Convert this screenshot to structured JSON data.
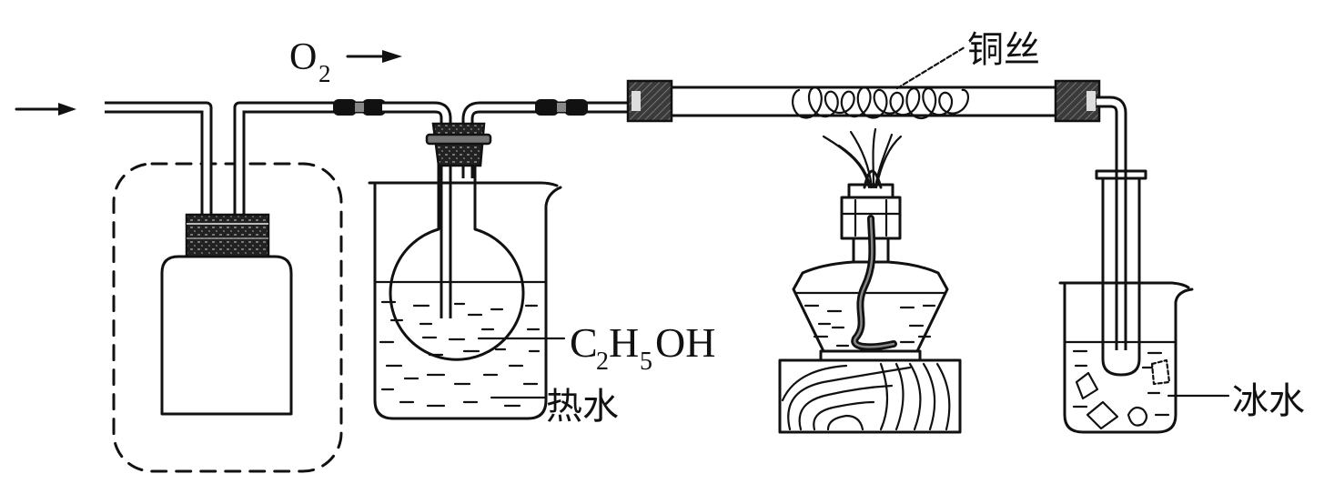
{
  "labels": {
    "oxygen": {
      "symbol": "O",
      "subscript": "2"
    },
    "copper_wire": "铜丝",
    "ethanol": {
      "c": "C",
      "c_sub": "2",
      "h": "H",
      "h_sub": "5",
      "oh": "OH"
    },
    "hot_water": "热水",
    "ice_water": "冰水"
  },
  "colors": {
    "ink": "#111111",
    "background": "#ffffff"
  }
}
